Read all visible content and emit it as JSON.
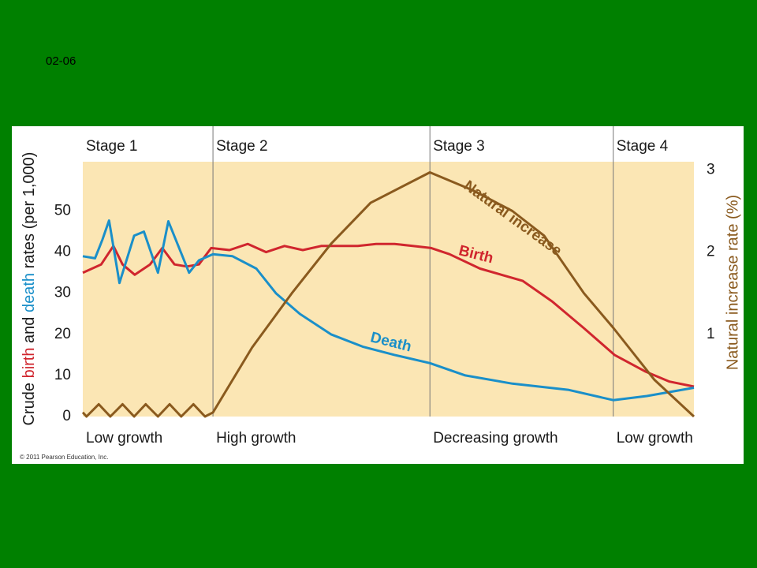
{
  "slide_label": "02-06",
  "chart_data": {
    "type": "line",
    "ylabel_parts": [
      {
        "text": "Crude ",
        "color": "#1a1a1a"
      },
      {
        "text": "birth",
        "color": "#d0262e"
      },
      {
        "text": " and ",
        "color": "#1a1a1a"
      },
      {
        "text": "death",
        "color": "#1a8fc9"
      },
      {
        "text": " rates (per 1,000)",
        "color": "#1a1a1a"
      }
    ],
    "y2label": "Natural increase rate (%)",
    "y2label_color": "#8a5a1e",
    "credit": "© 2011 Pearson Education, Inc.",
    "xlim": [
      0,
      100
    ],
    "ylim": [
      0,
      62
    ],
    "yticks": [
      0,
      10,
      20,
      30,
      40,
      50
    ],
    "y2lim": [
      0,
      3.1
    ],
    "y2ticks": [
      1,
      2,
      3
    ],
    "stages": [
      {
        "label": "Stage 1",
        "growth": "Low growth",
        "start": 0,
        "end": 21.3
      },
      {
        "label": "Stage 2",
        "growth": "High growth",
        "start": 21.3,
        "end": 56.8
      },
      {
        "label": "Stage 3",
        "growth": "Decreasing growth",
        "start": 56.8,
        "end": 86.8
      },
      {
        "label": "Stage 4",
        "growth": "Low growth",
        "start": 86.8,
        "end": 100
      }
    ],
    "series": [
      {
        "name": "Birth",
        "color": "#d0262e",
        "x": [
          0,
          3,
          5,
          6.5,
          8.5,
          11,
          13,
          15,
          17,
          19,
          20,
          21,
          24,
          27,
          30,
          33,
          36,
          39,
          42,
          45,
          48,
          51,
          54,
          57,
          60,
          65,
          72,
          76.8,
          82,
          87,
          92,
          96,
          100
        ],
        "values": [
          35,
          37,
          41.5,
          37,
          34.5,
          37,
          41,
          37,
          36.5,
          37,
          39,
          41,
          40.5,
          42,
          40,
          41.5,
          40.5,
          41.5,
          41.5,
          41.5,
          42,
          42,
          41.5,
          41,
          39.5,
          36,
          33,
          28,
          21.5,
          15,
          11,
          8.5,
          7.3
        ]
      },
      {
        "name": "Death",
        "color": "#1a8fc9",
        "x": [
          0,
          2,
          3.2,
          4.3,
          6,
          8.4,
          10,
          12.3,
          14,
          17.4,
          19,
          21.3,
          24.5,
          28.4,
          31.6,
          35.5,
          40.6,
          45.8,
          51,
          56.8,
          62.6,
          70.3,
          79.4,
          86.8,
          92.3,
          100
        ],
        "values": [
          39,
          38.5,
          43,
          47.7,
          32.5,
          44,
          45,
          35,
          47.5,
          35,
          38,
          39.5,
          39,
          36,
          30,
          25,
          20,
          17,
          15,
          13,
          10,
          8,
          6.5,
          4,
          5,
          7
        ]
      },
      {
        "name": "Natural increase",
        "color": "#8a5a1e",
        "axis": "y2",
        "x": [
          0,
          0.6,
          2.6,
          4.5,
          6.5,
          8.4,
          10.3,
          12.3,
          14.2,
          16.1,
          18.1,
          20,
          21.3,
          27.7,
          34.2,
          40.6,
          47.1,
          56.8,
          63.9,
          70.3,
          75.5,
          82,
          86.8,
          93.5,
          100
        ],
        "values": [
          0.05,
          0,
          0.15,
          0,
          0.15,
          0,
          0.15,
          0,
          0.15,
          0,
          0.15,
          0,
          0.05,
          0.84,
          1.5,
          2.1,
          2.6,
          2.97,
          2.75,
          2.5,
          2.2,
          1.5,
          1.08,
          0.45,
          0
        ]
      }
    ]
  }
}
